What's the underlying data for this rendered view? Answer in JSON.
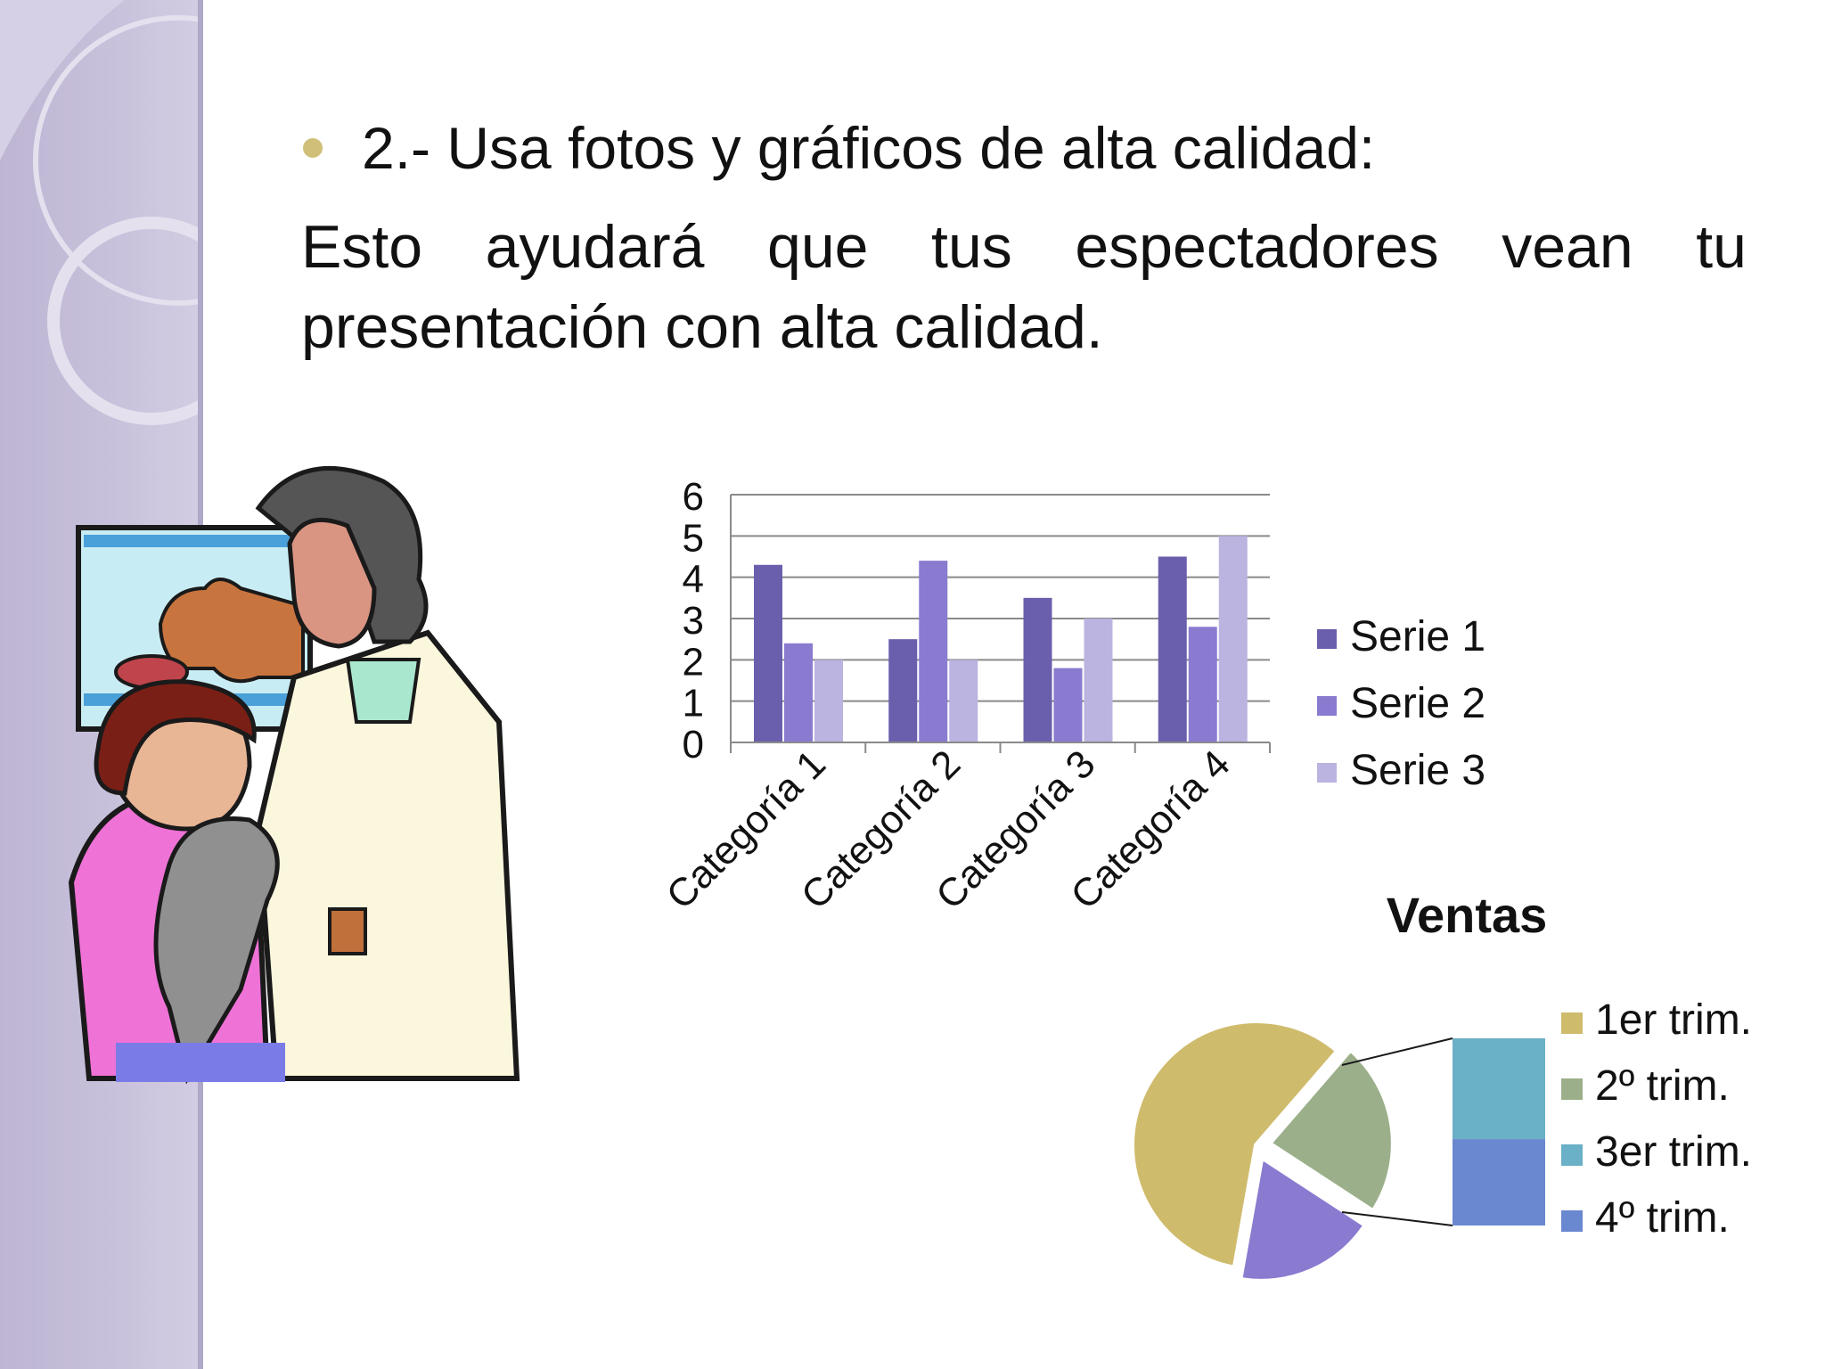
{
  "slide": {
    "bullet": "2.- Usa fotos y gráficos de alta calidad:",
    "body": "Esto ayudará que tus espectadores vean tu presentación con alta calidad."
  },
  "colors": {
    "sidebar": "#c6bfd9",
    "bullet_dot": "#cfbf78",
    "serie1": "#6a5fad",
    "serie2": "#8a7bd0",
    "serie3": "#bbb3e0",
    "trim1": "#cfbb6c",
    "trim2": "#9bb08a",
    "trim3": "#6ab0c6",
    "trim4": "#6a88d0"
  },
  "clipart": {
    "icon": "veterinarian-illustration-icon"
  },
  "chart_data": [
    {
      "type": "bar",
      "categories": [
        "Categoría 1",
        "Categoría 2",
        "Categoría 3",
        "Categoría 4"
      ],
      "series": [
        {
          "name": "Serie 1",
          "values": [
            4.3,
            2.5,
            3.5,
            4.5
          ]
        },
        {
          "name": "Serie 2",
          "values": [
            2.4,
            4.4,
            1.8,
            2.8
          ]
        },
        {
          "name": "Serie 3",
          "values": [
            2,
            2,
            3,
            5
          ]
        }
      ],
      "yticks": [
        "0",
        "1",
        "2",
        "3",
        "4",
        "5",
        "6"
      ],
      "ylim": [
        0,
        6
      ],
      "grid": true,
      "legend": "right"
    },
    {
      "type": "pie",
      "title": "Ventas",
      "labels": [
        "1er trim.",
        "2º trim.",
        "3er trim.",
        "4º trim."
      ],
      "values": [
        8.2,
        3.2,
        1.4,
        1.2
      ],
      "subtype": "pie-of-bar",
      "legend": "right"
    }
  ]
}
